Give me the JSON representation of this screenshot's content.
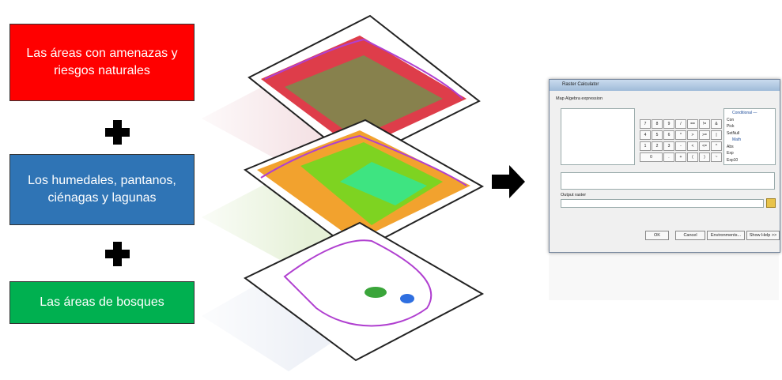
{
  "boxes": [
    {
      "label": "Las áreas con amenazas y riesgos naturales"
    },
    {
      "label": "Los humedales, pantanos, ciénagas y lagunas"
    },
    {
      "label": "Las áreas de bosques"
    }
  ],
  "dialog": {
    "title": "Raster Calculator",
    "expression_label": "Map Algebra expression",
    "keypad": [
      [
        "7",
        "8",
        "9",
        "/",
        "==",
        "!=",
        "&"
      ],
      [
        "4",
        "5",
        "6",
        "*",
        ">",
        ">=",
        "|"
      ],
      [
        "1",
        "2",
        "3",
        "-",
        "<",
        "<=",
        "^"
      ],
      [
        "0",
        ".",
        "+",
        "(",
        ")",
        "~"
      ]
    ],
    "functions": [
      "Conditional —",
      "Con",
      "Pick",
      "SetNull",
      "Math",
      "Abs",
      "Exp",
      "Exp10"
    ],
    "output_label": "Output raster",
    "buttons": [
      "OK",
      "Cancel",
      "Environments...",
      "Show Help >>"
    ]
  }
}
